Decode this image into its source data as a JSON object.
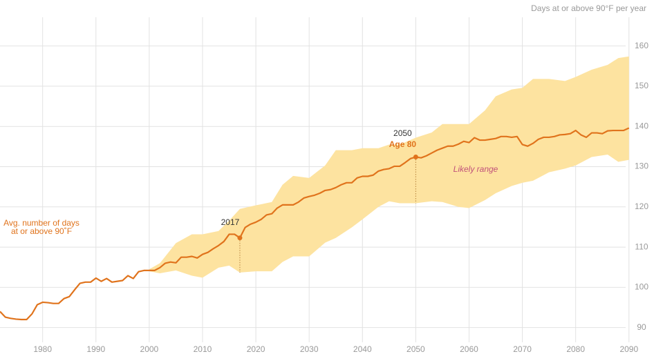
{
  "chart_data": {
    "type": "line",
    "axis_label": "Days at or above 90°F per year",
    "x": [
      1972,
      1973,
      1974,
      1975,
      1976,
      1977,
      1978,
      1979,
      1980,
      1981,
      1982,
      1983,
      1984,
      1985,
      1986,
      1987,
      1988,
      1989,
      1990,
      1991,
      1992,
      1993,
      1994,
      1995,
      1996,
      1997,
      1998,
      1999,
      2000,
      2001,
      2002,
      2003,
      2004,
      2005,
      2006,
      2007,
      2008,
      2009,
      2010,
      2011,
      2012,
      2013,
      2014,
      2015,
      2016,
      2017,
      2018,
      2019,
      2020,
      2021,
      2022,
      2023,
      2024,
      2025,
      2026,
      2027,
      2028,
      2029,
      2030,
      2031,
      2032,
      2033,
      2034,
      2035,
      2036,
      2037,
      2038,
      2039,
      2040,
      2041,
      2042,
      2043,
      2044,
      2045,
      2046,
      2047,
      2048,
      2049,
      2050,
      2051,
      2052,
      2053,
      2054,
      2055,
      2056,
      2057,
      2058,
      2059,
      2060,
      2061,
      2062,
      2063,
      2064,
      2065,
      2066,
      2067,
      2068,
      2069,
      2070,
      2071,
      2072,
      2073,
      2074,
      2075,
      2076,
      2077,
      2078,
      2079,
      2080,
      2081,
      2082,
      2083,
      2084,
      2085,
      2086,
      2087,
      2088,
      2089,
      2090
    ],
    "series": [
      {
        "name": [
          "Avg. number of days",
          "at or above 90˚F"
        ],
        "color": "#e0731c",
        "values": [
          94,
          92.6,
          92.3,
          92.1,
          92,
          92,
          93.4,
          95.7,
          96.3,
          96.2,
          96,
          96,
          97.2,
          97.7,
          99.4,
          101,
          101.3,
          101.3,
          102.3,
          101.5,
          102.2,
          101.3,
          101.5,
          101.7,
          102.9,
          102.2,
          103.9,
          104.2,
          104.2,
          104.2,
          104.9,
          106,
          106.3,
          106.1,
          107.5,
          107.5,
          107.7,
          107.3,
          108.2,
          108.7,
          109.6,
          110.4,
          111.4,
          113.2,
          113.2,
          112.3,
          114.9,
          115.7,
          116.2,
          116.9,
          118,
          118.3,
          119.7,
          120.5,
          120.5,
          120.5,
          121.2,
          122.2,
          122.6,
          122.9,
          123.4,
          124.1,
          124.3,
          124.8,
          125.5,
          126,
          126,
          127.2,
          127.6,
          127.6,
          127.9,
          128.9,
          129.3,
          129.5,
          130.1,
          130.1,
          131,
          132,
          132.4,
          132.2,
          132.7,
          133.4,
          134.1,
          134.6,
          135.1,
          135.1,
          135.6,
          136.3,
          136,
          137.2,
          136.6,
          136.6,
          136.8,
          137,
          137.5,
          137.5,
          137.3,
          137.5,
          135.5,
          135.1,
          135.8,
          136.8,
          137.3,
          137.3,
          137.5,
          137.9,
          138,
          138.2,
          139,
          137.9,
          137.3,
          138.4,
          138.4,
          138.2,
          138.9,
          139,
          139,
          139,
          139.6
        ]
      }
    ],
    "band": {
      "name": "Likely range",
      "color": "#fde3a0",
      "x": [
        2000,
        2002,
        2005,
        2008,
        2010,
        2013,
        2015,
        2017,
        2020,
        2023,
        2025,
        2027,
        2030,
        2033,
        2035,
        2038,
        2040,
        2043,
        2045,
        2047,
        2050,
        2053,
        2055,
        2058,
        2060,
        2063,
        2065,
        2068,
        2070,
        2072,
        2075,
        2078,
        2080,
        2083,
        2086,
        2088,
        2090
      ],
      "upper": [
        104.5,
        106,
        111,
        113.2,
        113.2,
        114,
        116.6,
        119.5,
        120.4,
        121.2,
        125.5,
        127.7,
        127.2,
        130.3,
        134.1,
        134.1,
        134.6,
        134.6,
        135.5,
        135.5,
        137.2,
        138.5,
        140.6,
        140.6,
        140.6,
        144,
        147.5,
        149.2,
        149.6,
        151.8,
        151.8,
        151.3,
        152.3,
        154.1,
        155.3,
        157,
        157.4
      ],
      "lower": [
        104,
        103.5,
        104.2,
        102.9,
        102.4,
        104.9,
        105.4,
        103.7,
        104,
        104,
        106.3,
        107.7,
        107.7,
        111.1,
        112.3,
        114.9,
        116.9,
        120,
        121.4,
        120.9,
        120.9,
        121.4,
        121.2,
        120,
        119.7,
        121.7,
        123.4,
        125.2,
        126,
        126.5,
        128.6,
        129.5,
        130.3,
        132.4,
        133,
        131.2,
        131.7
      ]
    },
    "markers": [
      {
        "label": "2017",
        "x": 2017,
        "value": 112.3
      },
      {
        "label": "2050",
        "sublabel": "Age 80",
        "x": 2050,
        "value": 132.4
      }
    ],
    "xlim": [
      1972,
      2091
    ],
    "ylim": [
      86,
      168
    ],
    "xticks": [
      1980,
      1990,
      2000,
      2010,
      2020,
      2030,
      2040,
      2050,
      2060,
      2070,
      2080,
      2090
    ],
    "yticks": [
      90,
      100,
      110,
      120,
      130,
      140,
      150,
      160
    ],
    "grid": true
  }
}
